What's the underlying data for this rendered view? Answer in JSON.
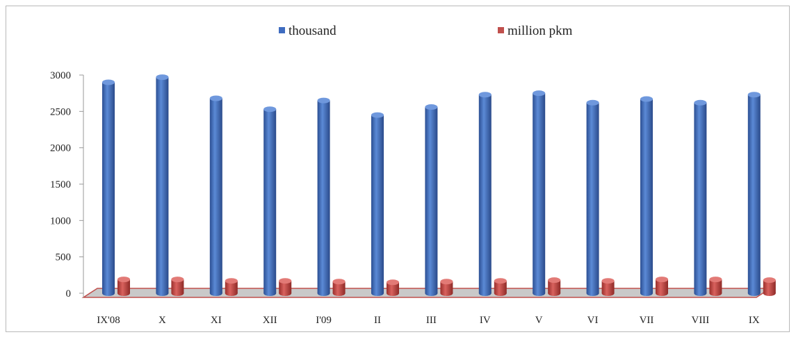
{
  "chart_data": {
    "type": "bar",
    "categories": [
      "IX'08",
      "X",
      "XI",
      "XII",
      "I'09",
      "II",
      "III",
      "IV",
      "V",
      "VI",
      "VII",
      "VIII",
      "IX"
    ],
    "series": [
      {
        "name": "thousand",
        "color": "#3f6cc0",
        "values": [
          2900,
          2970,
          2680,
          2530,
          2650,
          2450,
          2560,
          2730,
          2750,
          2620,
          2670,
          2620,
          2730
        ]
      },
      {
        "name": "million pkm",
        "color": "#c0504d",
        "values": [
          190,
          190,
          170,
          170,
          160,
          150,
          160,
          170,
          180,
          170,
          190,
          190,
          180
        ]
      }
    ],
    "y_ticks": [
      "0",
      "500",
      "1000",
      "1500",
      "2000",
      "2500",
      "3000"
    ],
    "ylim": [
      0,
      3000
    ],
    "legend_position": "top",
    "grid": false
  }
}
